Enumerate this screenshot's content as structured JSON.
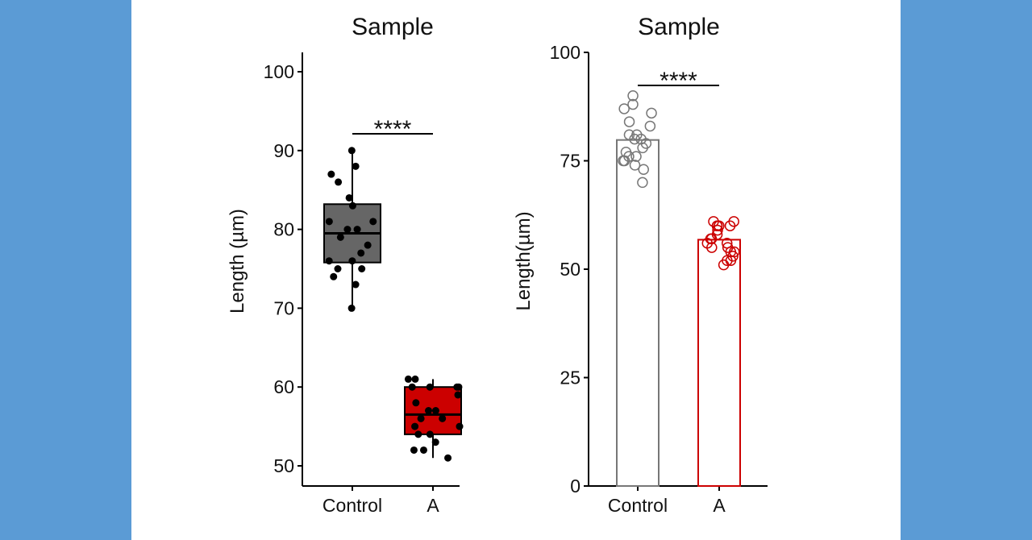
{
  "chart_data": [
    {
      "type": "box",
      "title": "Sample",
      "xlabel": "",
      "ylabel": "Length (µm)",
      "categories": [
        "Control",
        "A"
      ],
      "ylim": [
        48,
        102
      ],
      "yticks": [
        50,
        60,
        70,
        80,
        90,
        100
      ],
      "grid": false,
      "colors": {
        "Control": "#666666",
        "A": "#cc0000"
      },
      "boxes": [
        {
          "category": "Control",
          "min": 70,
          "q1": 75.8,
          "median": 79.5,
          "q3": 83.2,
          "max": 90
        },
        {
          "category": "A",
          "min": 51,
          "q1": 54,
          "median": 56.5,
          "q3": 60,
          "max": 61
        }
      ],
      "points": {
        "Control": [
          90,
          88,
          87,
          86,
          84,
          83,
          81,
          81,
          80,
          80,
          79,
          78,
          77,
          76,
          76,
          75,
          75,
          74,
          73,
          70
        ],
        "A": [
          61,
          61,
          60,
          60,
          60,
          60,
          59,
          58,
          57,
          57,
          56,
          56,
          55,
          55,
          54,
          54,
          53,
          52,
          52,
          51
        ]
      },
      "significance": {
        "groups": [
          "Control",
          "A"
        ],
        "label": "****"
      }
    },
    {
      "type": "bar",
      "title": "Sample",
      "xlabel": "",
      "ylabel": "Length(µm)",
      "categories": [
        "Control",
        "A"
      ],
      "values": [
        79.8,
        56.8
      ],
      "ylim": [
        0,
        100
      ],
      "yticks": [
        0,
        25,
        50,
        75,
        100
      ],
      "grid": false,
      "colors": {
        "Control": "#777777",
        "A": "#cc0000"
      },
      "points": {
        "Control": [
          90,
          88,
          87,
          86,
          84,
          83,
          81,
          81,
          80,
          80,
          79,
          78,
          77,
          76,
          76,
          75,
          75,
          74,
          73,
          70
        ],
        "A": [
          61,
          61,
          60,
          60,
          60,
          60,
          59,
          58,
          57,
          57,
          56,
          56,
          55,
          55,
          54,
          54,
          53,
          52,
          52,
          51
        ]
      },
      "significance": {
        "groups": [
          "Control",
          "A"
        ],
        "label": "****"
      }
    }
  ]
}
